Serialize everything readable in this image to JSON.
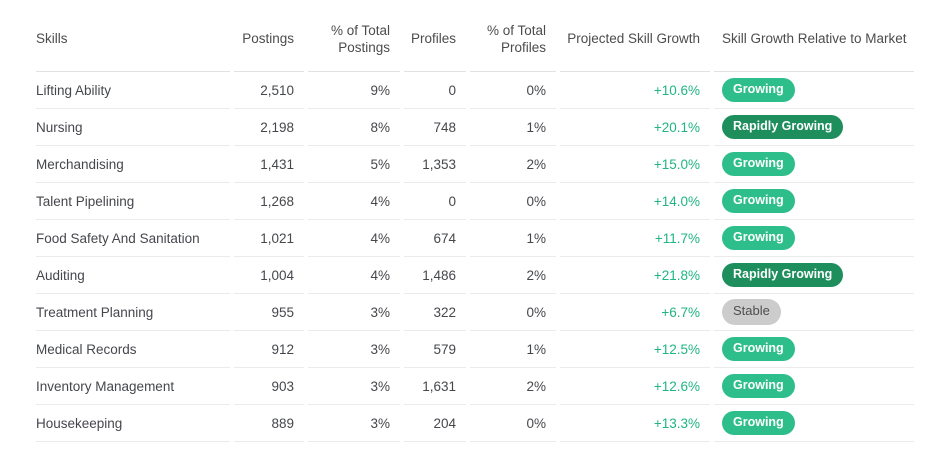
{
  "colors": {
    "badge_growing": "#2ebe8b",
    "badge_rapidly_growing": "#1e8e5d",
    "badge_stable_bg": "#cccccc",
    "badge_stable_text": "#4e4e4e",
    "growth_text": "#1fb584"
  },
  "table": {
    "columns": [
      {
        "key": "skill",
        "label": "Skills",
        "align": "left"
      },
      {
        "key": "postings",
        "label": "Postings",
        "align": "right"
      },
      {
        "key": "pct_postings",
        "label": "% of Total Postings",
        "align": "right"
      },
      {
        "key": "profiles",
        "label": "Profiles",
        "align": "right"
      },
      {
        "key": "pct_profiles",
        "label": "% of Total Profiles",
        "align": "right"
      },
      {
        "key": "projected_growth",
        "label": "Projected Skill Growth",
        "align": "right"
      },
      {
        "key": "growth_relative",
        "label": "Skill Growth Relative to Market",
        "align": "left"
      }
    ],
    "rows": [
      {
        "skill": "Lifting Ability",
        "postings": "2,510",
        "pct_postings": "9%",
        "profiles": "0",
        "pct_profiles": "0%",
        "projected_growth": "+10.6%",
        "growth_relative": "Growing",
        "badge": "growing"
      },
      {
        "skill": "Nursing",
        "postings": "2,198",
        "pct_postings": "8%",
        "profiles": "748",
        "pct_profiles": "1%",
        "projected_growth": "+20.1%",
        "growth_relative": "Rapidly Growing",
        "badge": "rapidly-growing"
      },
      {
        "skill": "Merchandising",
        "postings": "1,431",
        "pct_postings": "5%",
        "profiles": "1,353",
        "pct_profiles": "2%",
        "projected_growth": "+15.0%",
        "growth_relative": "Growing",
        "badge": "growing"
      },
      {
        "skill": "Talent Pipelining",
        "postings": "1,268",
        "pct_postings": "4%",
        "profiles": "0",
        "pct_profiles": "0%",
        "projected_growth": "+14.0%",
        "growth_relative": "Growing",
        "badge": "growing"
      },
      {
        "skill": "Food Safety And Sanitation",
        "postings": "1,021",
        "pct_postings": "4%",
        "profiles": "674",
        "pct_profiles": "1%",
        "projected_growth": "+11.7%",
        "growth_relative": "Growing",
        "badge": "growing"
      },
      {
        "skill": "Auditing",
        "postings": "1,004",
        "pct_postings": "4%",
        "profiles": "1,486",
        "pct_profiles": "2%",
        "projected_growth": "+21.8%",
        "growth_relative": "Rapidly Growing",
        "badge": "rapidly-growing"
      },
      {
        "skill": "Treatment Planning",
        "postings": "955",
        "pct_postings": "3%",
        "profiles": "322",
        "pct_profiles": "0%",
        "projected_growth": "+6.7%",
        "growth_relative": "Stable",
        "badge": "stable"
      },
      {
        "skill": "Medical Records",
        "postings": "912",
        "pct_postings": "3%",
        "profiles": "579",
        "pct_profiles": "1%",
        "projected_growth": "+12.5%",
        "growth_relative": "Growing",
        "badge": "growing"
      },
      {
        "skill": "Inventory Management",
        "postings": "903",
        "pct_postings": "3%",
        "profiles": "1,631",
        "pct_profiles": "2%",
        "projected_growth": "+12.6%",
        "growth_relative": "Growing",
        "badge": "growing"
      },
      {
        "skill": "Housekeeping",
        "postings": "889",
        "pct_postings": "3%",
        "profiles": "204",
        "pct_profiles": "0%",
        "projected_growth": "+13.3%",
        "growth_relative": "Growing",
        "badge": "growing"
      }
    ]
  }
}
